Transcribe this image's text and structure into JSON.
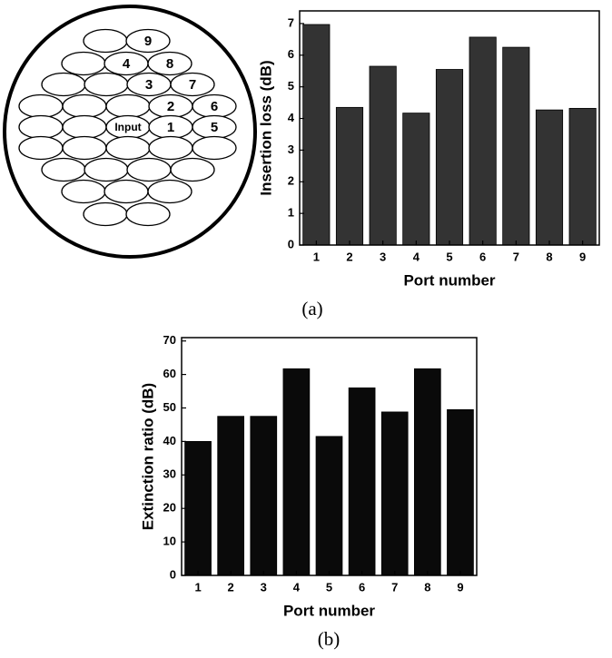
{
  "diagram": {
    "labels": [
      "9",
      "4",
      "8",
      "3",
      "7",
      "2",
      "6",
      "Input",
      "1",
      "5"
    ]
  },
  "captions": [
    "(a)",
    "(b)"
  ],
  "chart_data": [
    {
      "type": "bar",
      "xlabel": "Port number",
      "ylabel": "Insertion loss (dB)",
      "categories": [
        "1",
        "2",
        "3",
        "4",
        "5",
        "6",
        "7",
        "8",
        "9"
      ],
      "values": [
        6.97,
        4.35,
        5.65,
        4.17,
        5.55,
        6.57,
        6.25,
        4.27,
        4.32
      ],
      "color": "#333333",
      "ylim": [
        0,
        7.4
      ],
      "yticks": [
        0,
        1,
        2,
        3,
        4,
        5,
        6,
        7
      ]
    },
    {
      "type": "bar",
      "xlabel": "Port number",
      "ylabel": "Extinction ratio (dB)",
      "categories": [
        "1",
        "2",
        "3",
        "4",
        "5",
        "6",
        "7",
        "8",
        "9"
      ],
      "values": [
        40,
        47.5,
        47.5,
        61.7,
        41.5,
        56,
        48.8,
        61.7,
        49.5
      ],
      "color": "#0a0a0a",
      "ylim": [
        0,
        71
      ],
      "yticks": [
        0,
        10,
        20,
        30,
        40,
        50,
        60,
        70
      ]
    }
  ]
}
